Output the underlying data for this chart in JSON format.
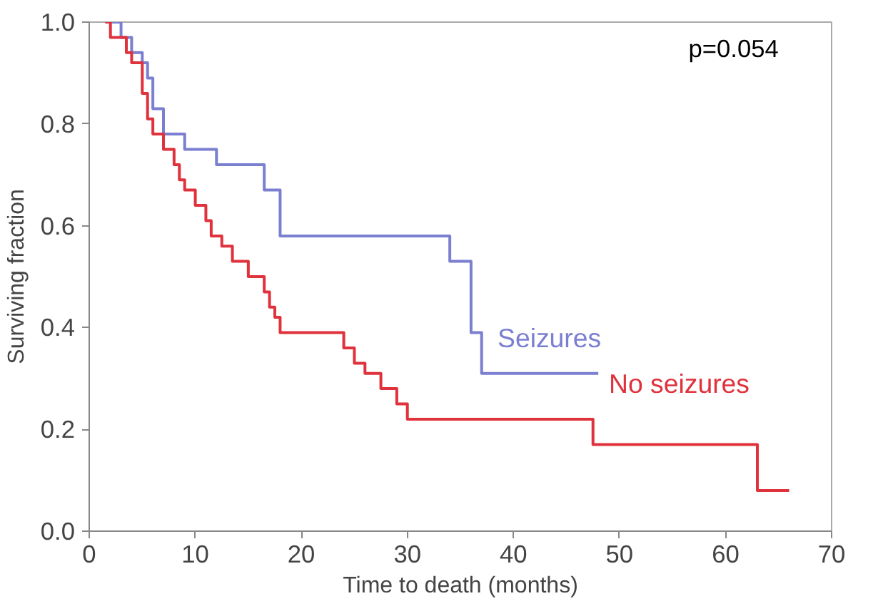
{
  "chart_data": {
    "type": "step",
    "xlabel": "Time to death (months)",
    "ylabel": "Surviving fraction",
    "annotations": [
      "p=0.054"
    ],
    "series": [
      {
        "name": "Seizures",
        "color": "#7b7fd0",
        "x": [
          2,
          3,
          4,
          5,
          5.5,
          6,
          7,
          9,
          12,
          16.5,
          18,
          34,
          36,
          37,
          48
        ],
        "values": [
          1.0,
          0.97,
          0.94,
          0.92,
          0.89,
          0.83,
          0.78,
          0.75,
          0.72,
          0.67,
          0.58,
          0.53,
          0.39,
          0.31,
          0.31
        ]
      },
      {
        "name": "No seizures",
        "color": "#e0323c",
        "x": [
          1.5,
          2,
          3.5,
          4,
          5,
          5.5,
          6,
          7,
          8,
          8.5,
          9,
          10,
          11,
          11.5,
          12.5,
          13.5,
          15,
          16.5,
          17,
          17.5,
          18,
          24,
          25,
          26,
          27.5,
          29,
          30,
          47.5,
          63,
          66
        ],
        "values": [
          1.0,
          0.97,
          0.94,
          0.92,
          0.86,
          0.81,
          0.78,
          0.75,
          0.72,
          0.69,
          0.67,
          0.64,
          0.61,
          0.58,
          0.56,
          0.53,
          0.5,
          0.47,
          0.44,
          0.42,
          0.39,
          0.36,
          0.33,
          0.31,
          0.28,
          0.25,
          0.22,
          0.17,
          0.08,
          0.08
        ]
      }
    ],
    "xlim": [
      0,
      70
    ],
    "xticks": [
      0,
      10,
      20,
      30,
      40,
      50,
      60,
      70
    ],
    "ylim": [
      0,
      1
    ],
    "yticks": [
      {
        "value": 0,
        "label": "0.0"
      },
      {
        "value": 0.2,
        "label": "0.2"
      },
      {
        "value": 0.4,
        "label": "0.4"
      },
      {
        "value": 0.6,
        "label": "0.6"
      },
      {
        "value": 0.8,
        "label": "0.8"
      },
      {
        "value": 1,
        "label": "1.0"
      }
    ],
    "grid": false,
    "legend": false
  }
}
